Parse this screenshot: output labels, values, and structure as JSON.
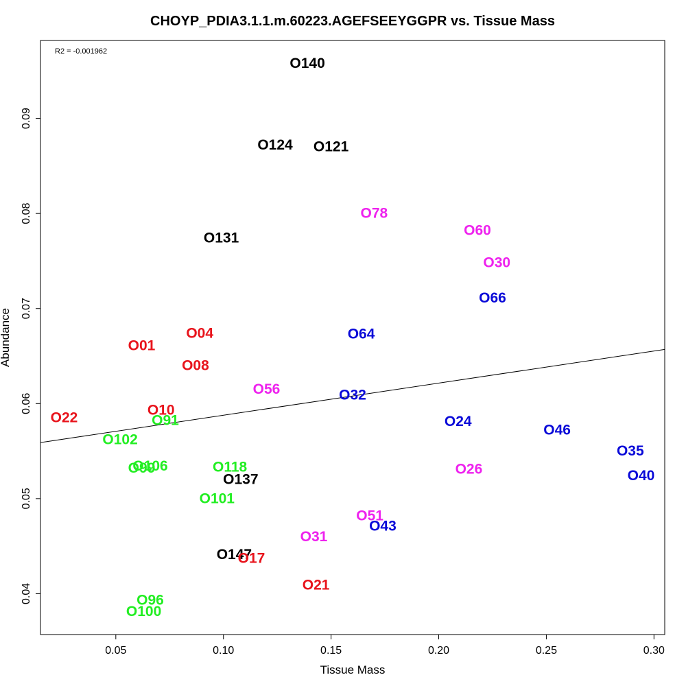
{
  "chart_data": {
    "type": "scatter",
    "title": "CHOYP_PDIA3.1.1.m.60223.AGEFSEEYGGPR vs. Tissue Mass",
    "xlabel": "Tissue Mass",
    "ylabel": "Abundance",
    "xlim": [
      0.015,
      0.305
    ],
    "ylim": [
      0.0357,
      0.0982
    ],
    "xticks": [
      0.05,
      0.1,
      0.15,
      0.2,
      0.25,
      0.3
    ],
    "xtick_labels": [
      "0.05",
      "0.10",
      "0.15",
      "0.20",
      "0.25",
      "0.30"
    ],
    "yticks": [
      0.04,
      0.05,
      0.06,
      0.07,
      0.08,
      0.09
    ],
    "ytick_labels": [
      "0.04",
      "0.05",
      "0.06",
      "0.07",
      "0.08",
      "0.09"
    ],
    "annotation": "R2 = -0.001962",
    "regression_line": {
      "x": [
        0.015,
        0.305
      ],
      "y": [
        0.0559,
        0.0657
      ]
    },
    "colors": {
      "black": "#000000",
      "red": "#e8141c",
      "green": "#22ee22",
      "blue": "#0a0ad8",
      "magenta": "#ee22ee"
    },
    "points": [
      {
        "label": "O140",
        "x": 0.139,
        "y": 0.0958,
        "color": "black"
      },
      {
        "label": "O124",
        "x": 0.124,
        "y": 0.0872,
        "color": "black"
      },
      {
        "label": "O121",
        "x": 0.15,
        "y": 0.087,
        "color": "black"
      },
      {
        "label": "O131",
        "x": 0.099,
        "y": 0.0774,
        "color": "black"
      },
      {
        "label": "O137",
        "x": 0.108,
        "y": 0.052,
        "color": "black"
      },
      {
        "label": "O147",
        "x": 0.105,
        "y": 0.0441,
        "color": "black"
      },
      {
        "label": "O04",
        "x": 0.089,
        "y": 0.0674,
        "color": "red"
      },
      {
        "label": "O01",
        "x": 0.062,
        "y": 0.0661,
        "color": "red"
      },
      {
        "label": "O08",
        "x": 0.087,
        "y": 0.064,
        "color": "red"
      },
      {
        "label": "O22",
        "x": 0.026,
        "y": 0.0585,
        "color": "red"
      },
      {
        "label": "O10",
        "x": 0.071,
        "y": 0.0593,
        "color": "red"
      },
      {
        "label": "O17",
        "x": 0.113,
        "y": 0.0437,
        "color": "red"
      },
      {
        "label": "O21",
        "x": 0.143,
        "y": 0.0409,
        "color": "red"
      },
      {
        "label": "O91",
        "x": 0.073,
        "y": 0.0582,
        "color": "green"
      },
      {
        "label": "O102",
        "x": 0.052,
        "y": 0.0562,
        "color": "green"
      },
      {
        "label": "O99",
        "x": 0.062,
        "y": 0.0532,
        "color": "green"
      },
      {
        "label": "O106",
        "x": 0.066,
        "y": 0.0534,
        "color": "green"
      },
      {
        "label": "O118",
        "x": 0.103,
        "y": 0.0533,
        "color": "green"
      },
      {
        "label": "O101",
        "x": 0.097,
        "y": 0.05,
        "color": "green"
      },
      {
        "label": "O96",
        "x": 0.066,
        "y": 0.0393,
        "color": "green"
      },
      {
        "label": "O100",
        "x": 0.063,
        "y": 0.0381,
        "color": "green"
      },
      {
        "label": "O78",
        "x": 0.17,
        "y": 0.08,
        "color": "magenta"
      },
      {
        "label": "O60",
        "x": 0.218,
        "y": 0.0782,
        "color": "magenta"
      },
      {
        "label": "O30",
        "x": 0.227,
        "y": 0.0748,
        "color": "magenta"
      },
      {
        "label": "O56",
        "x": 0.12,
        "y": 0.0615,
        "color": "magenta"
      },
      {
        "label": "O26",
        "x": 0.214,
        "y": 0.0531,
        "color": "magenta"
      },
      {
        "label": "O51",
        "x": 0.168,
        "y": 0.0482,
        "color": "magenta"
      },
      {
        "label": "O31",
        "x": 0.142,
        "y": 0.046,
        "color": "magenta"
      },
      {
        "label": "O66",
        "x": 0.225,
        "y": 0.0711,
        "color": "blue"
      },
      {
        "label": "O64",
        "x": 0.164,
        "y": 0.0673,
        "color": "blue"
      },
      {
        "label": "O32",
        "x": 0.16,
        "y": 0.0609,
        "color": "blue"
      },
      {
        "label": "O24",
        "x": 0.209,
        "y": 0.0581,
        "color": "blue"
      },
      {
        "label": "O46",
        "x": 0.255,
        "y": 0.0572,
        "color": "blue"
      },
      {
        "label": "O35",
        "x": 0.289,
        "y": 0.055,
        "color": "blue"
      },
      {
        "label": "O40",
        "x": 0.294,
        "y": 0.0524,
        "color": "blue"
      },
      {
        "label": "O43",
        "x": 0.174,
        "y": 0.0471,
        "color": "blue"
      }
    ]
  }
}
